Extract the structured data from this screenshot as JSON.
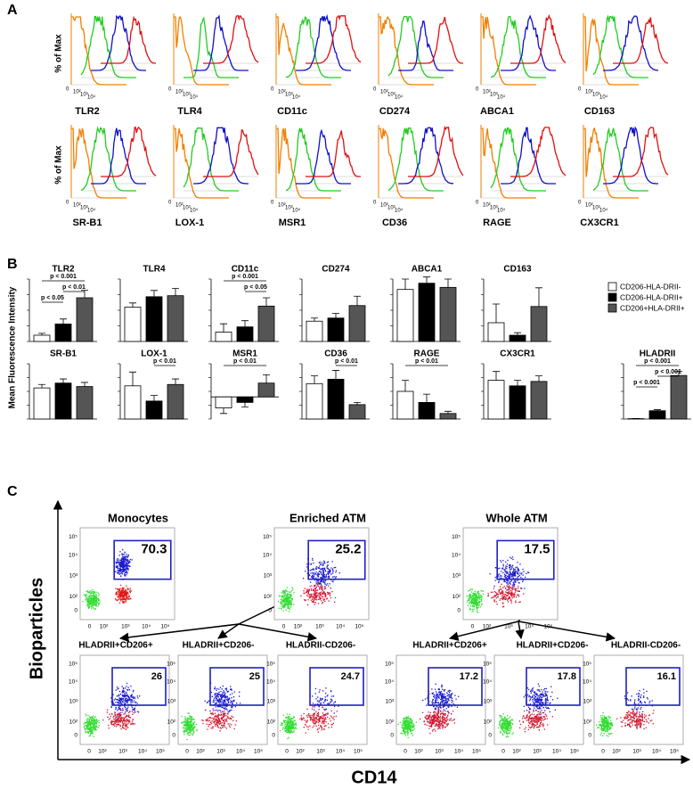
{
  "panel_labels": [
    "A",
    "B",
    "C"
  ],
  "panel_a": {
    "y_label": "% of Max",
    "tick_labels": [
      "0",
      "10²",
      "10³",
      "10⁴"
    ],
    "histograms": [
      "TLR2",
      "TLR4",
      "CD11c",
      "CD274",
      "ABCA1",
      "CD163",
      "SR-B1",
      "LOX-1",
      "MSR1",
      "CD36",
      "RAGE",
      "CX3CR1"
    ]
  },
  "panel_b": {
    "y_label": "Mean Fluorescence Intensity",
    "legend": [
      {
        "name": "CD206-HLA-DRII-",
        "color": "#ffffff"
      },
      {
        "name": "CD206-HLA-DRII+",
        "color": "#000000"
      },
      {
        "name": "CD206+HLA-DRII+",
        "color": "#555555"
      }
    ],
    "charts": [
      {
        "title": "TLR2",
        "ylim": [
          0,
          500
        ],
        "values": [
          50,
          140,
          350
        ],
        "errors": [
          15,
          40,
          60
        ],
        "annotations": [
          {
            "label": "p < 0.001",
            "from": 0,
            "to": 2
          },
          {
            "label": "p < 0.01",
            "from": 1,
            "to": 2
          },
          {
            "label": "p < 0.05",
            "from": 0,
            "to": 1
          }
        ]
      },
      {
        "title": "TLR4",
        "ylim": [
          0,
          600
        ],
        "values": [
          330,
          430,
          440
        ],
        "errors": [
          40,
          60,
          70
        ],
        "annotations": []
      },
      {
        "title": "CD11c",
        "ylim": [
          0,
          300
        ],
        "values": [
          45,
          70,
          170
        ],
        "errors": [
          40,
          30,
          40
        ],
        "annotations": [
          {
            "label": "p < 0.001",
            "from": 0,
            "to": 2
          },
          {
            "label": "p < 0.05",
            "from": 1,
            "to": 2
          }
        ]
      },
      {
        "title": "CD274",
        "ylim": [
          0,
          200
        ],
        "values": [
          65,
          75,
          115
        ],
        "errors": [
          10,
          15,
          30
        ],
        "annotations": []
      },
      {
        "title": "ABCA1",
        "ylim": [
          0,
          1500
        ],
        "values": [
          1250,
          1400,
          1300
        ],
        "errors": [
          250,
          150,
          200
        ],
        "annotations": []
      },
      {
        "title": "CD163",
        "ylim": [
          0,
          500
        ],
        "values": [
          150,
          50,
          280
        ],
        "errors": [
          150,
          20,
          150
        ],
        "annotations": []
      },
      {
        "title": "SR-B1",
        "ylim": [
          0,
          800
        ],
        "values": [
          450,
          520,
          470
        ],
        "errors": [
          50,
          60,
          60
        ],
        "annotations": []
      },
      {
        "title": "LOX-1",
        "ylim": [
          0,
          200
        ],
        "values": [
          120,
          65,
          125
        ],
        "errors": [
          50,
          20,
          20
        ],
        "annotations": [
          {
            "label": "p < 0.01",
            "from": 1,
            "to": 2
          }
        ]
      },
      {
        "title": "MSR1",
        "ylim": [
          -40,
          60
        ],
        "values": [
          -20,
          -10,
          25
        ],
        "errors": [
          10,
          8,
          15
        ],
        "annotations": [
          {
            "label": "p < 0.01",
            "from": 0,
            "to": 2
          }
        ]
      },
      {
        "title": "CD36",
        "ylim": [
          0,
          2500
        ],
        "values": [
          1600,
          1800,
          650
        ],
        "errors": [
          350,
          400,
          100
        ],
        "annotations": [
          {
            "label": "p < 0.01",
            "from": 1,
            "to": 2
          }
        ]
      },
      {
        "title": "RAGE",
        "ylim": [
          0,
          2000
        ],
        "values": [
          1000,
          600,
          200
        ],
        "errors": [
          400,
          300,
          80
        ],
        "annotations": [
          {
            "label": "p < 0.01",
            "from": 0,
            "to": 2
          }
        ]
      },
      {
        "title": "CX3CR1",
        "ylim": [
          0,
          500
        ],
        "values": [
          350,
          300,
          340
        ],
        "errors": [
          80,
          50,
          50
        ],
        "annotations": []
      },
      {
        "title": "HLADRII",
        "ylim": [
          0,
          8000
        ],
        "values": [
          50,
          1200,
          6300
        ],
        "errors": [
          20,
          150,
          600
        ],
        "annotations": [
          {
            "label": "p < 0.001",
            "from": 0,
            "to": 2
          },
          {
            "label": "p < 0.001",
            "from": 1,
            "to": 2
          },
          {
            "label": "p < 0.001",
            "from": 0,
            "to": 1
          }
        ]
      }
    ]
  },
  "panel_c": {
    "y_label": "Bioparticles",
    "x_label": "CD14",
    "tick_labels": [
      "0",
      "10²",
      "10³",
      "10⁴",
      "10⁵"
    ],
    "top": [
      {
        "title": "Monocytes",
        "gate": 70.3
      },
      {
        "title": "Enriched ATM",
        "gate": 25.2
      },
      {
        "title": "Whole ATM",
        "gate": 17.5
      }
    ],
    "bottom": [
      {
        "title": "HLADRII+CD206+",
        "gate": 26
      },
      {
        "title": "HLADRII+CD206-",
        "gate": 25
      },
      {
        "title": "HLADRII-CD206-",
        "gate": 24.7
      },
      {
        "title": "HLADRII+CD206+",
        "gate": 17.2
      },
      {
        "title": "HLADRII+CD206-",
        "gate": 17.8
      },
      {
        "title": "HLADRII-CD206-",
        "gate": 16.1
      }
    ]
  }
}
